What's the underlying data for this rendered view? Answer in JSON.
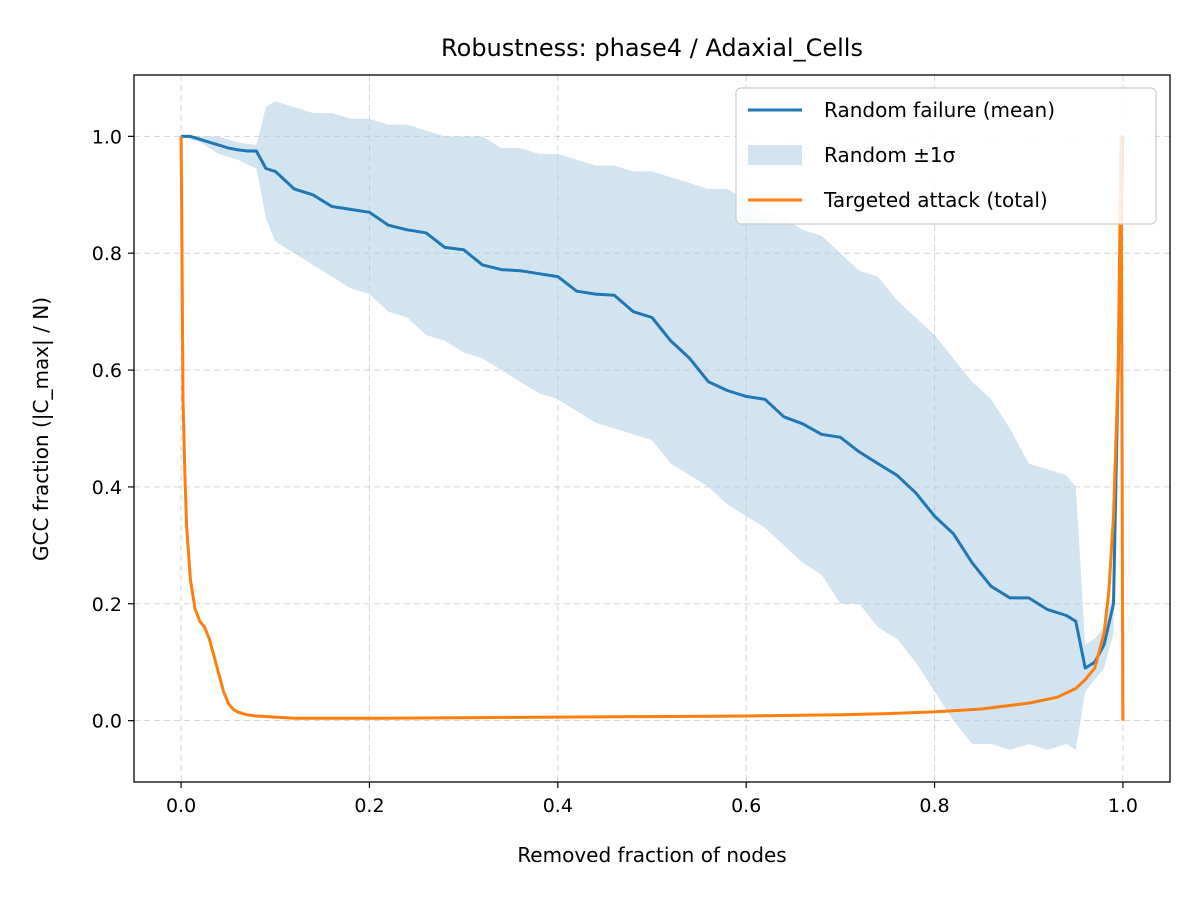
{
  "chart_data": {
    "type": "line",
    "title": "Robustness: phase4 / Adaxial_Cells",
    "xlabel": "Removed fraction of nodes",
    "ylabel": "GCC fraction (|C_max| / N)",
    "xlim": [
      -0.05,
      1.05
    ],
    "ylim": [
      -0.105,
      1.105
    ],
    "x_ticks": [
      0.0,
      0.2,
      0.4,
      0.6,
      0.8,
      1.0
    ],
    "x_tick_labels": [
      "0.0",
      "0.2",
      "0.4",
      "0.6",
      "0.8",
      "1.0"
    ],
    "y_ticks": [
      0.0,
      0.2,
      0.4,
      0.6,
      0.8,
      1.0
    ],
    "y_tick_labels": [
      "0.0",
      "0.2",
      "0.4",
      "0.6",
      "0.8",
      "1.0"
    ],
    "grid": true,
    "legend_position": "top-right",
    "colors": {
      "random_mean": "#1f77b4",
      "random_band": "#aecde5",
      "targeted": "#ff7f0e"
    },
    "series": [
      {
        "name": "Random failure (mean)",
        "style": "line",
        "x": [
          0.0,
          0.01,
          0.02,
          0.03,
          0.04,
          0.05,
          0.06,
          0.07,
          0.08,
          0.09,
          0.1,
          0.12,
          0.14,
          0.16,
          0.18,
          0.2,
          0.22,
          0.24,
          0.26,
          0.28,
          0.3,
          0.32,
          0.34,
          0.36,
          0.38,
          0.4,
          0.42,
          0.44,
          0.46,
          0.48,
          0.5,
          0.52,
          0.54,
          0.56,
          0.58,
          0.6,
          0.62,
          0.64,
          0.66,
          0.68,
          0.7,
          0.72,
          0.74,
          0.76,
          0.78,
          0.8,
          0.82,
          0.84,
          0.86,
          0.88,
          0.9,
          0.92,
          0.94,
          0.95,
          0.96,
          0.97,
          0.98,
          0.99,
          1.0
        ],
        "y": [
          1.0,
          1.0,
          0.995,
          0.99,
          0.985,
          0.98,
          0.977,
          0.975,
          0.975,
          0.945,
          0.94,
          0.91,
          0.9,
          0.88,
          0.875,
          0.87,
          0.848,
          0.84,
          0.835,
          0.81,
          0.806,
          0.78,
          0.772,
          0.77,
          0.765,
          0.76,
          0.735,
          0.73,
          0.728,
          0.7,
          0.69,
          0.65,
          0.62,
          0.58,
          0.565,
          0.555,
          0.55,
          0.52,
          0.508,
          0.49,
          0.485,
          0.46,
          0.44,
          0.42,
          0.39,
          0.35,
          0.32,
          0.27,
          0.23,
          0.21,
          0.21,
          0.19,
          0.18,
          0.17,
          0.09,
          0.1,
          0.13,
          0.2,
          1.0
        ]
      },
      {
        "name": "Random ±1σ",
        "style": "band",
        "x": [
          0.0,
          0.02,
          0.04,
          0.06,
          0.08,
          0.09,
          0.1,
          0.12,
          0.14,
          0.16,
          0.18,
          0.2,
          0.22,
          0.24,
          0.26,
          0.28,
          0.3,
          0.32,
          0.34,
          0.36,
          0.38,
          0.4,
          0.42,
          0.44,
          0.46,
          0.48,
          0.5,
          0.52,
          0.54,
          0.56,
          0.58,
          0.6,
          0.62,
          0.64,
          0.66,
          0.68,
          0.7,
          0.72,
          0.74,
          0.76,
          0.78,
          0.8,
          0.82,
          0.84,
          0.86,
          0.88,
          0.9,
          0.92,
          0.94,
          0.95,
          0.96,
          0.97,
          0.98,
          0.99,
          1.0
        ],
        "lower": [
          1.0,
          0.99,
          0.97,
          0.96,
          0.945,
          0.86,
          0.82,
          0.8,
          0.78,
          0.76,
          0.74,
          0.73,
          0.7,
          0.69,
          0.66,
          0.65,
          0.63,
          0.62,
          0.6,
          0.58,
          0.56,
          0.55,
          0.53,
          0.51,
          0.5,
          0.49,
          0.48,
          0.44,
          0.42,
          0.4,
          0.37,
          0.35,
          0.33,
          0.3,
          0.27,
          0.25,
          0.2,
          0.2,
          0.16,
          0.14,
          0.1,
          0.05,
          0.0,
          -0.04,
          -0.04,
          -0.05,
          -0.04,
          -0.05,
          -0.04,
          -0.05,
          0.05,
          0.07,
          0.09,
          0.15,
          1.0
        ],
        "upper": [
          1.0,
          1.0,
          1.0,
          0.99,
          0.985,
          1.05,
          1.06,
          1.05,
          1.04,
          1.04,
          1.03,
          1.03,
          1.02,
          1.02,
          1.01,
          1.0,
          1.0,
          1.0,
          0.98,
          0.98,
          0.97,
          0.97,
          0.96,
          0.95,
          0.95,
          0.94,
          0.94,
          0.93,
          0.92,
          0.91,
          0.91,
          0.89,
          0.87,
          0.86,
          0.84,
          0.83,
          0.8,
          0.77,
          0.76,
          0.72,
          0.69,
          0.66,
          0.62,
          0.58,
          0.55,
          0.5,
          0.44,
          0.43,
          0.42,
          0.4,
          0.13,
          0.14,
          0.16,
          0.22,
          1.0
        ]
      },
      {
        "name": "Targeted attack (total)",
        "style": "line",
        "x": [
          0.0,
          0.001,
          0.002,
          0.004,
          0.006,
          0.01,
          0.015,
          0.02,
          0.025,
          0.03,
          0.035,
          0.04,
          0.045,
          0.05,
          0.055,
          0.06,
          0.07,
          0.08,
          0.1,
          0.12,
          0.2,
          0.3,
          0.4,
          0.5,
          0.6,
          0.7,
          0.75,
          0.8,
          0.85,
          0.9,
          0.93,
          0.95,
          0.96,
          0.97,
          0.98,
          0.985,
          0.99,
          0.995,
          0.998,
          0.999,
          1.0
        ],
        "y": [
          1.0,
          0.8,
          0.55,
          0.42,
          0.33,
          0.24,
          0.19,
          0.17,
          0.16,
          0.14,
          0.11,
          0.08,
          0.05,
          0.03,
          0.02,
          0.015,
          0.01,
          0.008,
          0.006,
          0.004,
          0.004,
          0.005,
          0.006,
          0.007,
          0.008,
          0.01,
          0.012,
          0.015,
          0.02,
          0.03,
          0.04,
          0.055,
          0.07,
          0.09,
          0.15,
          0.22,
          0.35,
          0.6,
          1.0,
          0.5,
          0.0
        ]
      }
    ]
  }
}
